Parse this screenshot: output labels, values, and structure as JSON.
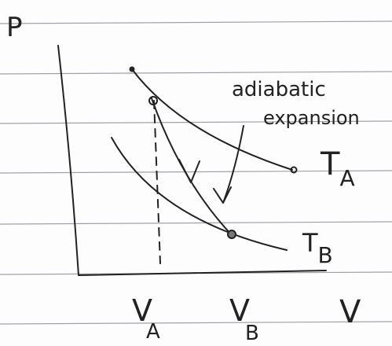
{
  "labels": {
    "p_axis": "P",
    "v_axis": "V",
    "annotation_line1": "adiabatic",
    "annotation_line2": "expansion",
    "isotherm_a": {
      "main": "T",
      "sub": "A"
    },
    "isotherm_b": {
      "main": "T",
      "sub": "B"
    },
    "volume_a": {
      "main": "V",
      "sub": "A"
    },
    "volume_b": {
      "main": "V",
      "sub": "B"
    }
  }
}
